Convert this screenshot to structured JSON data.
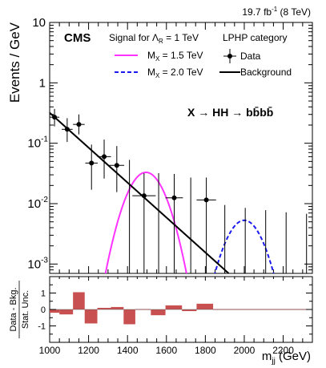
{
  "chart_data": [
    {
      "type": "scatter",
      "experiment": "CMS",
      "lumi_label": "19.7 fb",
      "lumi_sup": "-1",
      "lumi_energy": " (8 TeV)",
      "signal_title_prefix": "Signal for Λ",
      "signal_title_sub": "R",
      "signal_title_suffix": " = 1 TeV",
      "category": "LPHP category",
      "process_label": "X → HH → bb̄bb̄",
      "ylabel": "Events / GeV",
      "xlabel_main": "m",
      "xlabel_sub": "jj",
      "xlabel_unit": " (GeV)",
      "xlim": [
        1000,
        2350
      ],
      "ylim": [
        0.0007,
        10
      ],
      "log_y": true,
      "x_ticks": [
        1000,
        1200,
        1400,
        1600,
        1800,
        2000,
        2200
      ],
      "y_ticks": [
        {
          "value": 10,
          "base": "10",
          "exp": ""
        },
        {
          "value": 1,
          "base": "1",
          "exp": ""
        },
        {
          "value": 0.1,
          "base": "10",
          "exp": "-1"
        },
        {
          "value": 0.01,
          "base": "10",
          "exp": "-2"
        },
        {
          "value": 0.001,
          "base": "10",
          "exp": "-3"
        }
      ],
      "legend": {
        "signal_1_prefix": "M",
        "signal_1_sub": "X",
        "signal_1_suffix": " = 1.5 TeV",
        "signal_2_prefix": "M",
        "signal_2_sub": "X",
        "signal_2_suffix": " = 2.0 TeV",
        "data": "Data",
        "background": "Background"
      },
      "colors": {
        "signal_1": "#ff33ff",
        "signal_2": "#1a1aee",
        "process_label": "#8b1010",
        "pull_fill": "#c85050",
        "background": "#000000",
        "data": "#000000"
      },
      "data_points": [
        {
          "x": 1025,
          "xerr": 25,
          "y": 0.27,
          "ylo": 0.19,
          "yhi": 0.37
        },
        {
          "x": 1090,
          "xerr": 28,
          "y": 0.17,
          "ylo": 0.105,
          "yhi": 0.26
        },
        {
          "x": 1150,
          "xerr": 30,
          "y": 0.205,
          "ylo": 0.14,
          "yhi": 0.3
        },
        {
          "x": 1215,
          "xerr": 32,
          "y": 0.047,
          "ylo": 0.017,
          "yhi": 0.095
        },
        {
          "x": 1280,
          "xerr": 35,
          "y": 0.06,
          "ylo": 0.026,
          "yhi": 0.115
        },
        {
          "x": 1345,
          "xerr": 38,
          "y": 0.043,
          "ylo": 0.0155,
          "yhi": 0.09
        },
        {
          "x": 1485,
          "xerr": 60,
          "y": 0.0135,
          "ylo": 0.0005,
          "yhi": 0.032
        },
        {
          "x": 1640,
          "xerr": 45,
          "y": 0.0125,
          "ylo": 0.0005,
          "yhi": 0.031
        },
        {
          "x": 1805,
          "xerr": 50,
          "y": 0.0115,
          "ylo": 0.0005,
          "yhi": 0.027
        }
      ],
      "upper_limits": [
        {
          "x": 1410,
          "y": 0.053
        },
        {
          "x": 1560,
          "y": 0.032
        },
        {
          "x": 1725,
          "y": 0.027
        },
        {
          "x": 1900,
          "y": 0.0095
        },
        {
          "x": 2005,
          "y": 0.0085
        },
        {
          "x": 2110,
          "y": 0.0078
        },
        {
          "x": 2215,
          "y": 0.0072
        },
        {
          "x": 2320,
          "y": 0.0068
        }
      ],
      "background_line": {
        "x": [
          1000,
          1920
        ],
        "y": [
          0.32,
          0.0007
        ]
      },
      "signal_1_gauss": {
        "peak": 0.033,
        "mu": 1495,
        "sigma": 75,
        "range": [
          1280,
          1720
        ]
      },
      "signal_2_gauss": {
        "peak": 0.0053,
        "mu": 2000,
        "sigma": 75,
        "range": [
          1800,
          2200
        ]
      }
    },
    {
      "type": "bar",
      "ylabel_line1": "Data - Bkg.",
      "ylabel_line2": "Stat. Unc.",
      "xlim": [
        1000,
        2350
      ],
      "ylim": [
        -2,
        2
      ],
      "y_ticks": [
        -1,
        0,
        1
      ],
      "bins": [
        {
          "x0": 1000,
          "x1": 1050,
          "value": -0.2
        },
        {
          "x0": 1050,
          "x1": 1120,
          "value": -0.3
        },
        {
          "x0": 1120,
          "x1": 1180,
          "value": 1.05
        },
        {
          "x0": 1180,
          "x1": 1245,
          "value": -0.85
        },
        {
          "x0": 1245,
          "x1": 1315,
          "value": 0.1
        },
        {
          "x0": 1315,
          "x1": 1380,
          "value": 0.15
        },
        {
          "x0": 1380,
          "x1": 1440,
          "value": -0.9
        },
        {
          "x0": 1440,
          "x1": 1520,
          "value": 0.0
        },
        {
          "x0": 1520,
          "x1": 1595,
          "value": -0.35
        },
        {
          "x0": 1595,
          "x1": 1680,
          "value": 0.25
        },
        {
          "x0": 1680,
          "x1": 1755,
          "value": -0.1
        },
        {
          "x0": 1755,
          "x1": 1840,
          "value": 0.35
        },
        {
          "x0": 1840,
          "x1": 2350,
          "value": 0.0
        }
      ]
    }
  ]
}
